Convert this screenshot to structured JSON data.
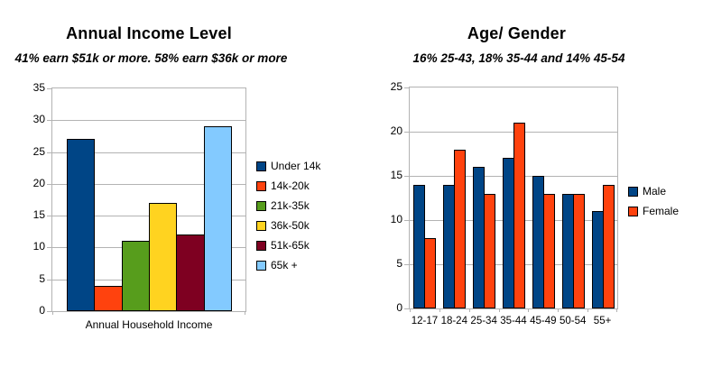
{
  "palette": {
    "background": "#ffffff",
    "grid_color": "#b3b3b3",
    "axis_color": "#b3b3b3",
    "bar_border_color": "#000000",
    "text_color": "#000000",
    "series_blue": "#004586",
    "series_red_orange": "#ff420e",
    "series_green": "#579d1c",
    "series_yellow": "#ffd320",
    "series_dark_red": "#7e0021",
    "series_light_blue": "#83caff"
  },
  "chart_data": [
    {
      "type": "bar",
      "title": "Annual Income Level",
      "subtitle": "41% earn $51k or more. 58% earn $36k or more",
      "categories": [
        "Under 14k",
        "14k-20k",
        "21k-35k",
        "36k-50k",
        "51k-65k",
        "65k +"
      ],
      "values": [
        27,
        4,
        11,
        17,
        12,
        29
      ],
      "colors": [
        "#004586",
        "#ff420e",
        "#579d1c",
        "#ffd320",
        "#7e0021",
        "#83caff"
      ],
      "xlabel": "Annual Household Income",
      "ylim": [
        0,
        35
      ],
      "ytick_step": 5,
      "ytick_labels": [
        "0",
        "5",
        "10",
        "15",
        "20",
        "25",
        "30",
        "35"
      ],
      "grid": true,
      "x_tick_labels_shown": false,
      "legend_position": "right",
      "legend_entries": [
        "Under 14k",
        "14k-20k",
        "21k-35k",
        "36k-50k",
        "51k-65k",
        "65k +"
      ]
    },
    {
      "type": "bar",
      "title": "Age/ Gender",
      "subtitle": "16% 25-43, 18% 35-44 and 14% 45-54",
      "categories": [
        "12-17",
        "18-24",
        "25-34",
        "35-44",
        "45-49",
        "50-54",
        "55+"
      ],
      "series": [
        {
          "name": "Male",
          "color": "#004586",
          "values": [
            14,
            14,
            16,
            17,
            15,
            13,
            11
          ]
        },
        {
          "name": "Female",
          "color": "#ff420e",
          "values": [
            8,
            18,
            13,
            21,
            13,
            13,
            14
          ]
        }
      ],
      "xlabel": "",
      "ylim": [
        0,
        25
      ],
      "ytick_step": 5,
      "ytick_labels": [
        "0",
        "5",
        "10",
        "15",
        "20",
        "25"
      ],
      "grid": true,
      "x_tick_labels_shown": true,
      "legend_position": "right",
      "legend_entries": [
        "Male",
        "Female"
      ]
    }
  ]
}
